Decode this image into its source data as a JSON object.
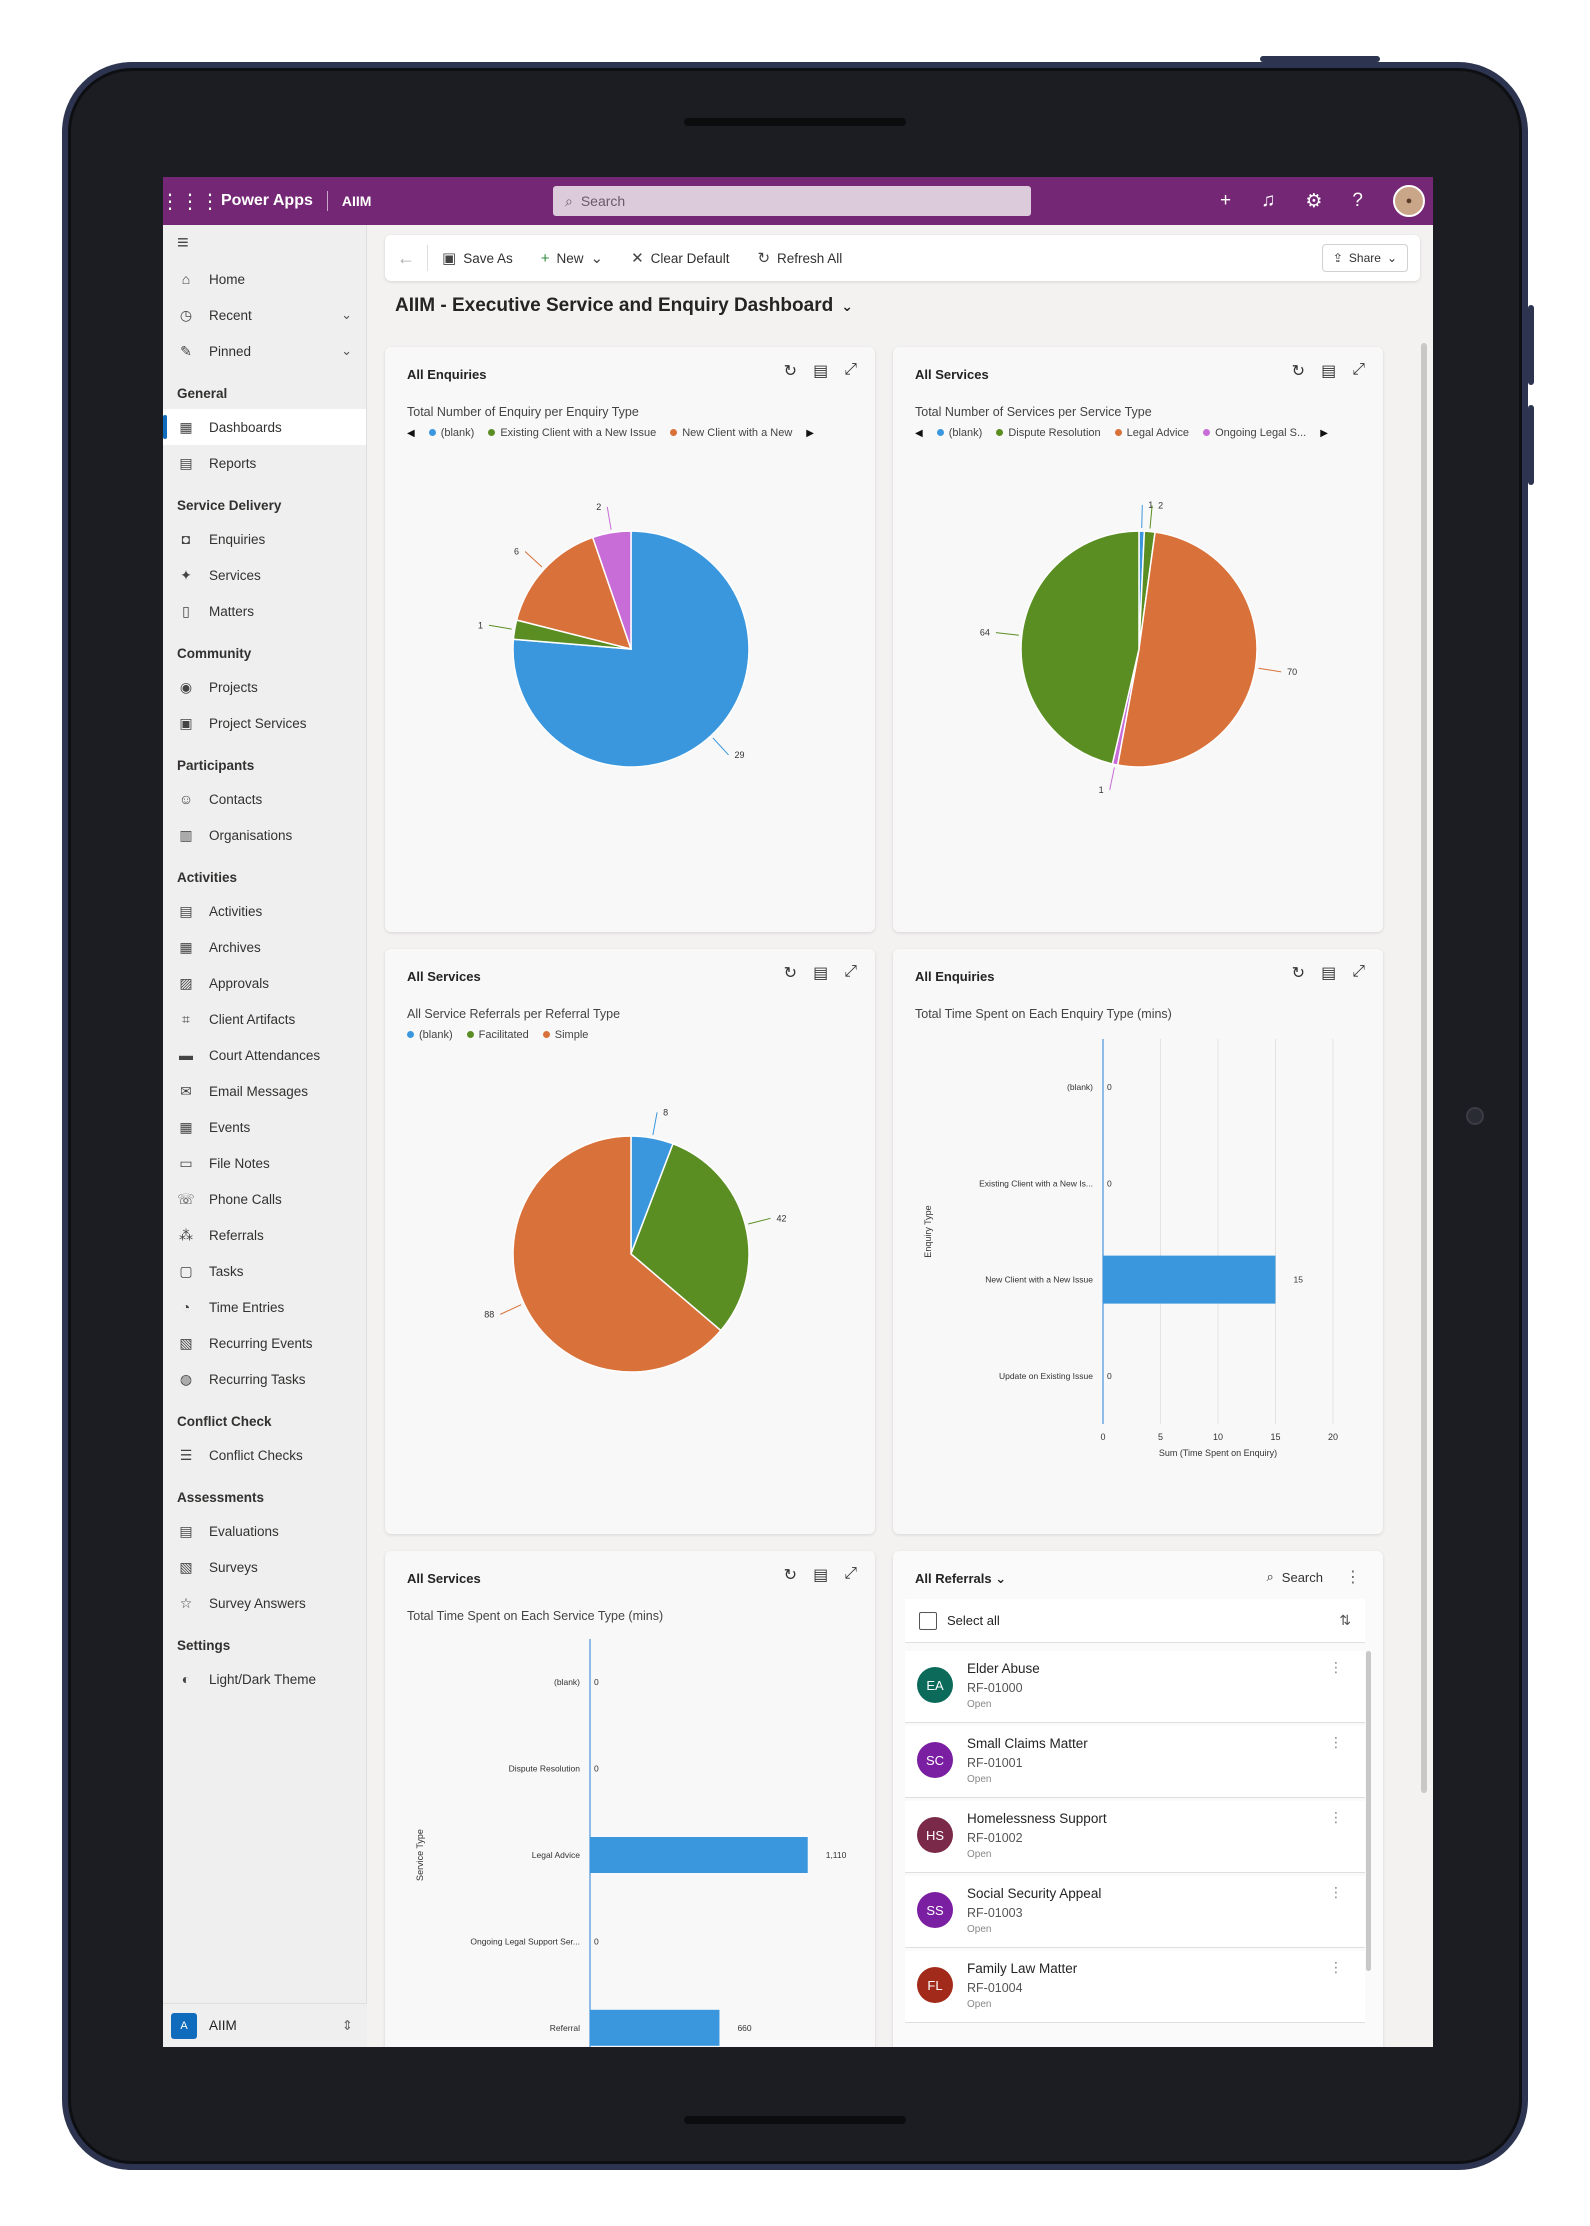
{
  "topbar": {
    "app": "Power Apps",
    "env": "AIIM",
    "search_placeholder": "Search"
  },
  "sidebar": {
    "top": [
      {
        "label": "Home",
        "icon": "home-icon"
      },
      {
        "label": "Recent",
        "icon": "clock-icon"
      },
      {
        "label": "Pinned",
        "icon": "pin-icon"
      }
    ],
    "groups": [
      {
        "heading": "General",
        "items": [
          "Dashboards",
          "Reports"
        ]
      },
      {
        "heading": "Service Delivery",
        "items": [
          "Enquiries",
          "Services",
          "Matters"
        ]
      },
      {
        "heading": "Community",
        "items": [
          "Projects",
          "Project Services"
        ]
      },
      {
        "heading": "Participants",
        "items": [
          "Contacts",
          "Organisations"
        ]
      },
      {
        "heading": "Activities",
        "items": [
          "Activities",
          "Archives",
          "Approvals",
          "Client Artifacts",
          "Court Attendances",
          "Email Messages",
          "Events",
          "File Notes",
          "Phone Calls",
          "Referrals",
          "Tasks",
          "Time Entries",
          "Recurring Events",
          "Recurring Tasks"
        ]
      },
      {
        "heading": "Conflict Check",
        "items": [
          "Conflict Checks"
        ]
      },
      {
        "heading": "Assessments",
        "items": [
          "Evaluations",
          "Surveys",
          "Survey Answers"
        ]
      },
      {
        "heading": "Settings",
        "items": [
          "Light/Dark Theme"
        ]
      }
    ],
    "area": {
      "badge": "A",
      "label": "AIIM"
    }
  },
  "cmdbar": {
    "save_as": "Save As",
    "new": "New",
    "clear_default": "Clear Default",
    "refresh_all": "Refresh All",
    "share": "Share"
  },
  "dashboard_title": "AIIM - Executive Service and Enquiry Dashboard",
  "colors": {
    "blank": "#3b97dd",
    "green": "#5a8e22",
    "orange": "#d9713a",
    "purple": "#c86dd7",
    "bar": "#3b97dd"
  },
  "cards": {
    "c1": {
      "title": "All Enquiries",
      "subtitle": "Total Number of Enquiry per Enquiry Type",
      "legend": [
        "(blank)",
        "Existing Client with a New Issue",
        "New Client with a New"
      ]
    },
    "c2": {
      "title": "All Services",
      "subtitle": "Total Number of Services per Service Type",
      "legend": [
        "(blank)",
        "Dispute Resolution",
        "Legal Advice",
        "Ongoing Legal S..."
      ]
    },
    "c3": {
      "title": "All Services",
      "subtitle": "All Service Referrals per Referral Type",
      "legend": [
        "(blank)",
        "Facilitated",
        "Simple"
      ]
    },
    "c4": {
      "title": "All Enquiries",
      "subtitle": "Total Time Spent on Each Enquiry Type (mins)"
    },
    "c5": {
      "title": "All Services",
      "subtitle": "Total Time Spent on Each Service Type (mins)"
    }
  },
  "chart_data": [
    {
      "type": "pie",
      "title": "Total Number of Enquiry per Enquiry Type",
      "categories": [
        "(blank)",
        "Existing Client with a New Issue",
        "New Client with a New Issue",
        "Update on Existing Issue"
      ],
      "values": [
        29,
        1,
        6,
        2
      ]
    },
    {
      "type": "pie",
      "title": "Total Number of Services per Service Type",
      "categories": [
        "(blank)",
        "Dispute Resolution",
        "Legal Advice",
        "Ongoing Legal Support",
        "Referral"
      ],
      "values": [
        1,
        2,
        70,
        1,
        64
      ]
    },
    {
      "type": "pie",
      "title": "All Service Referrals per Referral Type",
      "categories": [
        "(blank)",
        "Facilitated",
        "Simple"
      ],
      "values": [
        8,
        42,
        88
      ]
    },
    {
      "type": "bar",
      "orientation": "horizontal",
      "title": "Total Time Spent on Each Enquiry Type (mins)",
      "categories": [
        "(blank)",
        "Existing Client with a New Is...",
        "New Client with a New Issue",
        "Update on Existing Issue"
      ],
      "values": [
        0,
        0,
        15,
        0
      ],
      "xlabel": "Sum (Time Spent on Enquiry)",
      "ylabel": "Enquiry Type",
      "xlim": [
        0,
        20
      ],
      "xticks": [
        0,
        5,
        10,
        15,
        20
      ]
    },
    {
      "type": "bar",
      "orientation": "horizontal",
      "title": "Total Time Spent on Each Service Type (mins)",
      "categories": [
        "(blank)",
        "Dispute Resolution",
        "Legal Advice",
        "Ongoing Legal Support Ser...",
        "Referral"
      ],
      "values": [
        0,
        0,
        1110,
        0,
        660
      ],
      "value_labels": [
        "0",
        "0",
        "1,110",
        "0",
        "660"
      ],
      "ylabel": "Service Type"
    }
  ],
  "referrals": {
    "view": "All Referrals",
    "search": "Search",
    "select_all": "Select all",
    "rows": [
      {
        "initials": "EA",
        "name": "Elder Abuse",
        "id": "RF-01000",
        "status": "Open",
        "color": "#0b6a5a"
      },
      {
        "initials": "SC",
        "name": "Small Claims Matter",
        "id": "RF-01001",
        "status": "Open",
        "color": "#7b1fa2"
      },
      {
        "initials": "HS",
        "name": "Homelessness Support",
        "id": "RF-01002",
        "status": "Open",
        "color": "#7a2a48"
      },
      {
        "initials": "SS",
        "name": "Social Security Appeal",
        "id": "RF-01003",
        "status": "Open",
        "color": "#7b1fa2"
      },
      {
        "initials": "FL",
        "name": "Family Law Matter",
        "id": "RF-01004",
        "status": "Open",
        "color": "#a12a1a"
      }
    ]
  }
}
